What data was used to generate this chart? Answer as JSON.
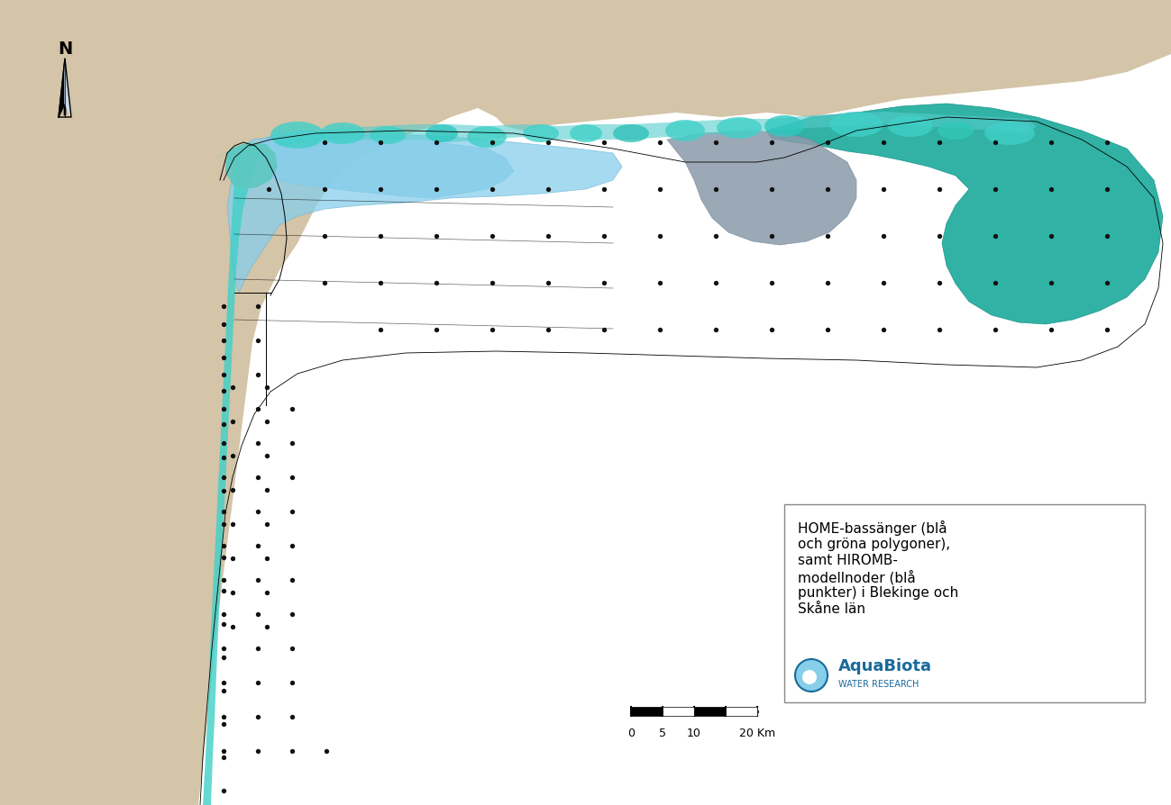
{
  "background_color": "#ffffff",
  "land_color": "#d4c4a8",
  "sea_color": "#ffffff",
  "legend_text": "HOME-bassänger (blå\noch gröna polygoner),\nsamt HIROMB-\nmodellnoder (blå\npunkter) i Blekinge och\nSkåne län",
  "scale_bar_labels": [
    "0",
    "5",
    "10",
    "20 Km"
  ],
  "dot_color": "#111111",
  "dot_size": 6,
  "colors": {
    "light_blue": "#87ceeb",
    "teal": "#40e0d0",
    "dark_teal": "#20b2aa",
    "green_teal": "#2e8b8b",
    "gray_blue": "#708090",
    "cyan": "#00ced1",
    "light_teal": "#b0e0e8"
  }
}
